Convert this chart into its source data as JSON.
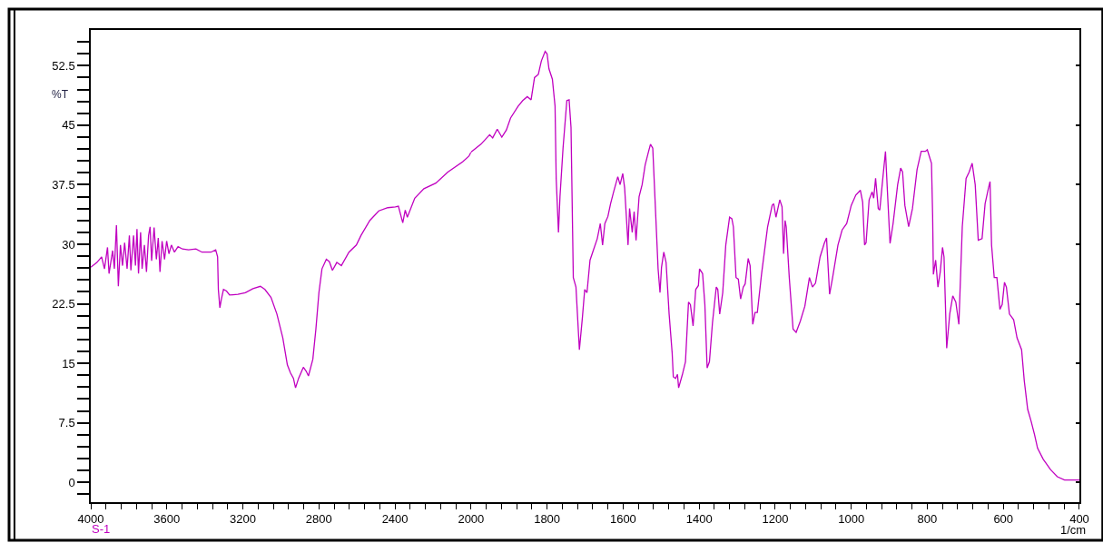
{
  "chart_data": [
    {
      "type": "line",
      "ylabel": "%T",
      "x": [
        4000,
        3968,
        3943,
        3928,
        3912,
        3904,
        3885,
        3876,
        3865,
        3855,
        3844,
        3833,
        3822,
        3809,
        3797,
        3789,
        3775,
        3765,
        3757,
        3749,
        3738,
        3730,
        3718,
        3707,
        3696,
        3688,
        3680,
        3667,
        3655,
        3645,
        3636,
        3625,
        3612,
        3601,
        3589,
        3576,
        3560,
        3541,
        3518,
        3486,
        3447,
        3415,
        3368,
        3343,
        3333,
        3329,
        3321,
        3313,
        3302,
        3286,
        3270,
        3226,
        3187,
        3147,
        3108,
        3084,
        3052,
        3021,
        2990,
        2966,
        2950,
        2934,
        2923,
        2907,
        2882,
        2867,
        2855,
        2832,
        2816,
        2800,
        2784,
        2761,
        2745,
        2729,
        2706,
        2682,
        2642,
        2603,
        2579,
        2532,
        2485,
        2438,
        2398,
        2382,
        2359,
        2346,
        2335,
        2296,
        2248,
        2185,
        2122,
        2043,
        2011,
        2000
      ],
      "series": [
        {
          "name": "S-1",
          "color": "#c000c0",
          "values": [
            27.1,
            27.7,
            28.4,
            26.9,
            29.6,
            26.3,
            29.2,
            26.9,
            32.4,
            24.7,
            29.9,
            27.3,
            30.2,
            26.9,
            31.1,
            26.7,
            31.1,
            27.3,
            31.9,
            26.3,
            31.5,
            26.9,
            29.9,
            26.5,
            31.1,
            32.2,
            27.9,
            32.1,
            28.1,
            30.8,
            26.5,
            30.4,
            28.1,
            30.4,
            28.8,
            29.9,
            29.0,
            29.7,
            29.4,
            29.3,
            29.4,
            29.0,
            29.0,
            29.3,
            28.4,
            24.3,
            22.0,
            23.1,
            24.3,
            24.1,
            23.6,
            23.7,
            23.9,
            24.4,
            24.7,
            24.3,
            23.3,
            21.2,
            18.2,
            14.8,
            13.8,
            13.1,
            11.9,
            13.1,
            14.5,
            14.0,
            13.4,
            15.5,
            19.3,
            23.9,
            26.9,
            28.1,
            27.8,
            26.7,
            27.7,
            27.3,
            29.0,
            29.9,
            31.1,
            33.0,
            34.2,
            34.6,
            34.7,
            34.8,
            32.7,
            34.3,
            33.4,
            35.8,
            37.0,
            37.7,
            39.1,
            40.4,
            41.1,
            41.6
          ]
        }
      ],
      "xlim": [
        4000,
        2000
      ],
      "xticks": [
        4000,
        {
          "value": 3920,
          "label": null
        },
        {
          "value": 3840,
          "label": null
        },
        {
          "value": 3760,
          "label": null
        },
        {
          "value": 3680,
          "label": null
        },
        3600,
        {
          "value": 3520,
          "label": null
        },
        {
          "value": 3440,
          "label": null
        },
        {
          "value": 3360,
          "label": null
        },
        {
          "value": 3280,
          "label": null
        },
        3200,
        {
          "value": 3120,
          "label": null
        },
        {
          "value": 3040,
          "label": null
        },
        {
          "value": 2960,
          "label": null
        },
        {
          "value": 2880,
          "label": null
        },
        2800,
        {
          "value": 2720,
          "label": null
        },
        {
          "value": 2640,
          "label": null
        },
        {
          "value": 2560,
          "label": null
        },
        {
          "value": 2480,
          "label": null
        },
        2400,
        {
          "value": 2320,
          "label": null
        },
        {
          "value": 2240,
          "label": null
        },
        {
          "value": 2160,
          "label": null
        },
        {
          "value": 2080,
          "label": null
        },
        2000
      ],
      "ylim": [
        -2.5,
        57
      ],
      "yticks": [
        {
          "value": -1.5,
          "label": null
        },
        0,
        {
          "value": 1.5,
          "label": null
        },
        {
          "value": 3,
          "label": null
        },
        {
          "value": 4.5,
          "label": null
        },
        {
          "value": 6,
          "label": null
        },
        7.5,
        {
          "value": 9,
          "label": null
        },
        {
          "value": 10.5,
          "label": null
        },
        {
          "value": 12,
          "label": null
        },
        {
          "value": 13.5,
          "label": null
        },
        15,
        {
          "value": 16.5,
          "label": null
        },
        {
          "value": 18,
          "label": null
        },
        {
          "value": 19.5,
          "label": null
        },
        {
          "value": 21,
          "label": null
        },
        22.5,
        {
          "value": 24,
          "label": null
        },
        {
          "value": 25.5,
          "label": null
        },
        {
          "value": 27,
          "label": null
        },
        {
          "value": 28.5,
          "label": null
        },
        30,
        {
          "value": 31.5,
          "label": null
        },
        {
          "value": 33,
          "label": null
        },
        {
          "value": 34.5,
          "label": null
        },
        {
          "value": 36,
          "label": null
        },
        37.5,
        {
          "value": 39,
          "label": null
        },
        {
          "value": 40.5,
          "label": null
        },
        {
          "value": 42,
          "label": null
        },
        {
          "value": 43.5,
          "label": null
        },
        45,
        {
          "value": 46.5,
          "label": null
        },
        {
          "value": 48,
          "label": null
        },
        {
          "value": 49.5,
          "label": null
        },
        {
          "value": 51,
          "label": null
        },
        52.5,
        {
          "value": 54,
          "label": null
        },
        {
          "value": 55.5,
          "label": null
        }
      ]
    },
    {
      "type": "line",
      "xlabel": "1/cm",
      "x": [
        2000,
        1974,
        1951,
        1943,
        1931,
        1919,
        1907,
        1896,
        1876,
        1864,
        1852,
        1842,
        1833,
        1823,
        1815,
        1805,
        1800,
        1795,
        1786,
        1779,
        1776,
        1770,
        1766,
        1758,
        1748,
        1742,
        1737,
        1731,
        1724,
        1715,
        1707,
        1701,
        1695,
        1687,
        1680,
        1668,
        1660,
        1654,
        1648,
        1640,
        1633,
        1625,
        1614,
        1608,
        1601,
        1596,
        1587,
        1583,
        1576,
        1571,
        1566,
        1558,
        1550,
        1542,
        1534,
        1528,
        1522,
        1515,
        1508,
        1503,
        1499,
        1493,
        1487,
        1479,
        1471,
        1468,
        1462,
        1457,
        1454,
        1444,
        1436,
        1428,
        1423,
        1416,
        1409,
        1402,
        1399,
        1391,
        1385,
        1379,
        1373,
        1365,
        1355,
        1351,
        1346,
        1338,
        1330,
        1320,
        1314,
        1310,
        1303,
        1297,
        1291,
        1284,
        1279,
        1271,
        1266,
        1259,
        1253,
        1247,
        1236,
        1220,
        1208,
        1204,
        1198,
        1188,
        1182,
        1178,
        1174,
        1171,
        1163,
        1153,
        1145,
        1134,
        1122,
        1110,
        1102,
        1094,
        1082,
        1071,
        1065,
        1057,
        1049,
        1035,
        1024,
        1012,
        1000,
        988,
        976,
        970,
        965,
        961,
        953,
        945,
        941,
        936,
        929,
        925,
        917,
        910,
        904,
        898,
        890,
        878,
        870,
        865,
        859,
        849,
        839,
        827,
        816,
        805,
        800,
        789,
        786,
        784,
        778,
        772,
        766,
        760,
        756,
        749,
        741,
        733,
        725,
        717,
        708,
        698,
        690,
        682,
        674,
        666,
        656,
        648,
        639,
        635,
        631,
        624,
        617,
        609,
        603,
        597,
        592,
        584,
        573,
        564,
        552,
        545,
        536,
        527,
        518,
        510,
        495,
        476,
        458,
        439,
        421,
        400
      ],
      "series": [
        {
          "color": "#c000c0",
          "values": [
            41.6,
            42.6,
            43.8,
            43.4,
            44.5,
            43.5,
            44.4,
            45.9,
            47.4,
            48.1,
            48.6,
            48.2,
            51.0,
            51.4,
            53.1,
            54.3,
            54.0,
            52.1,
            50.8,
            47.4,
            38.3,
            31.5,
            36.0,
            42.1,
            48.1,
            48.2,
            44.7,
            25.8,
            24.6,
            16.7,
            20.8,
            24.3,
            23.9,
            28.0,
            29.0,
            30.7,
            32.6,
            29.9,
            32.6,
            33.5,
            35.1,
            36.6,
            38.5,
            37.5,
            38.9,
            37.1,
            29.9,
            34.5,
            31.5,
            34.1,
            30.5,
            36.0,
            37.5,
            40.0,
            41.5,
            42.6,
            42.1,
            34.5,
            26.9,
            23.9,
            27.1,
            29.0,
            27.7,
            21.2,
            16.3,
            13.3,
            13.1,
            13.6,
            11.9,
            13.6,
            15.2,
            22.7,
            22.4,
            19.7,
            24.3,
            24.8,
            26.9,
            26.3,
            22.4,
            14.4,
            15.2,
            20.1,
            24.6,
            24.3,
            21.2,
            23.9,
            29.9,
            33.4,
            33.2,
            32.2,
            25.8,
            25.6,
            23.1,
            24.6,
            25.0,
            28.2,
            27.3,
            19.9,
            21.4,
            21.4,
            26.2,
            32.2,
            34.9,
            35.1,
            33.4,
            35.6,
            34.7,
            28.8,
            33.0,
            32.2,
            25.8,
            19.3,
            18.9,
            20.3,
            22.2,
            25.8,
            24.6,
            25.1,
            28.4,
            30.1,
            30.8,
            23.7,
            25.8,
            29.9,
            31.8,
            32.6,
            34.9,
            36.2,
            36.8,
            35.3,
            29.9,
            30.2,
            35.6,
            36.6,
            35.8,
            38.3,
            34.5,
            34.3,
            38.3,
            41.7,
            35.8,
            30.1,
            32.6,
            37.5,
            39.6,
            39.1,
            34.9,
            32.2,
            34.5,
            39.4,
            41.7,
            41.7,
            41.9,
            40.2,
            33.7,
            26.2,
            28.0,
            24.6,
            26.5,
            29.6,
            28.4,
            16.9,
            21.2,
            23.5,
            22.7,
            19.9,
            32.2,
            38.3,
            39.1,
            40.2,
            37.5,
            30.5,
            30.7,
            35.1,
            37.1,
            37.9,
            29.9,
            25.8,
            25.8,
            21.8,
            22.4,
            25.2,
            24.6,
            21.2,
            20.5,
            18.2,
            16.7,
            12.8,
            9.2,
            7.7,
            6.0,
            4.3,
            2.9,
            1.6,
            0.7,
            0.3,
            0.3,
            0.3
          ]
        }
      ],
      "xlim": [
        2000,
        400
      ],
      "xticks": [
        {
          "value": 1960,
          "label": null
        },
        {
          "value": 1920,
          "label": null
        },
        {
          "value": 1880,
          "label": null
        },
        {
          "value": 1840,
          "label": null
        },
        1800,
        {
          "value": 1760,
          "label": null
        },
        {
          "value": 1720,
          "label": null
        },
        {
          "value": 1680,
          "label": null
        },
        {
          "value": 1640,
          "label": null
        },
        1600,
        {
          "value": 1560,
          "label": null
        },
        {
          "value": 1520,
          "label": null
        },
        {
          "value": 1480,
          "label": null
        },
        {
          "value": 1440,
          "label": null
        },
        1400,
        {
          "value": 1360,
          "label": null
        },
        {
          "value": 1320,
          "label": null
        },
        {
          "value": 1280,
          "label": null
        },
        {
          "value": 1240,
          "label": null
        },
        1200,
        {
          "value": 1160,
          "label": null
        },
        {
          "value": 1120,
          "label": null
        },
        {
          "value": 1080,
          "label": null
        },
        {
          "value": 1040,
          "label": null
        },
        1000,
        {
          "value": 960,
          "label": null
        },
        {
          "value": 920,
          "label": null
        },
        {
          "value": 880,
          "label": null
        },
        {
          "value": 840,
          "label": null
        },
        800,
        {
          "value": 760,
          "label": null
        },
        {
          "value": 720,
          "label": null
        },
        {
          "value": 680,
          "label": null
        },
        {
          "value": 640,
          "label": null
        },
        600,
        {
          "value": 560,
          "label": null
        },
        {
          "value": 520,
          "label": null
        },
        {
          "value": 480,
          "label": null
        },
        {
          "value": 440,
          "label": null
        },
        400
      ],
      "ylim": [
        -2.5,
        57
      ],
      "yticks": [
        {
          "value": 0,
          "label": null
        },
        {
          "value": 7.5,
          "label": null
        },
        {
          "value": 15,
          "label": null
        },
        {
          "value": 22.5,
          "label": null
        },
        {
          "value": 30,
          "label": null
        },
        {
          "value": 37.5,
          "label": null
        },
        {
          "value": 45,
          "label": null
        },
        {
          "value": 52.5,
          "label": null
        }
      ],
      "tick_labels": "x"
    }
  ]
}
